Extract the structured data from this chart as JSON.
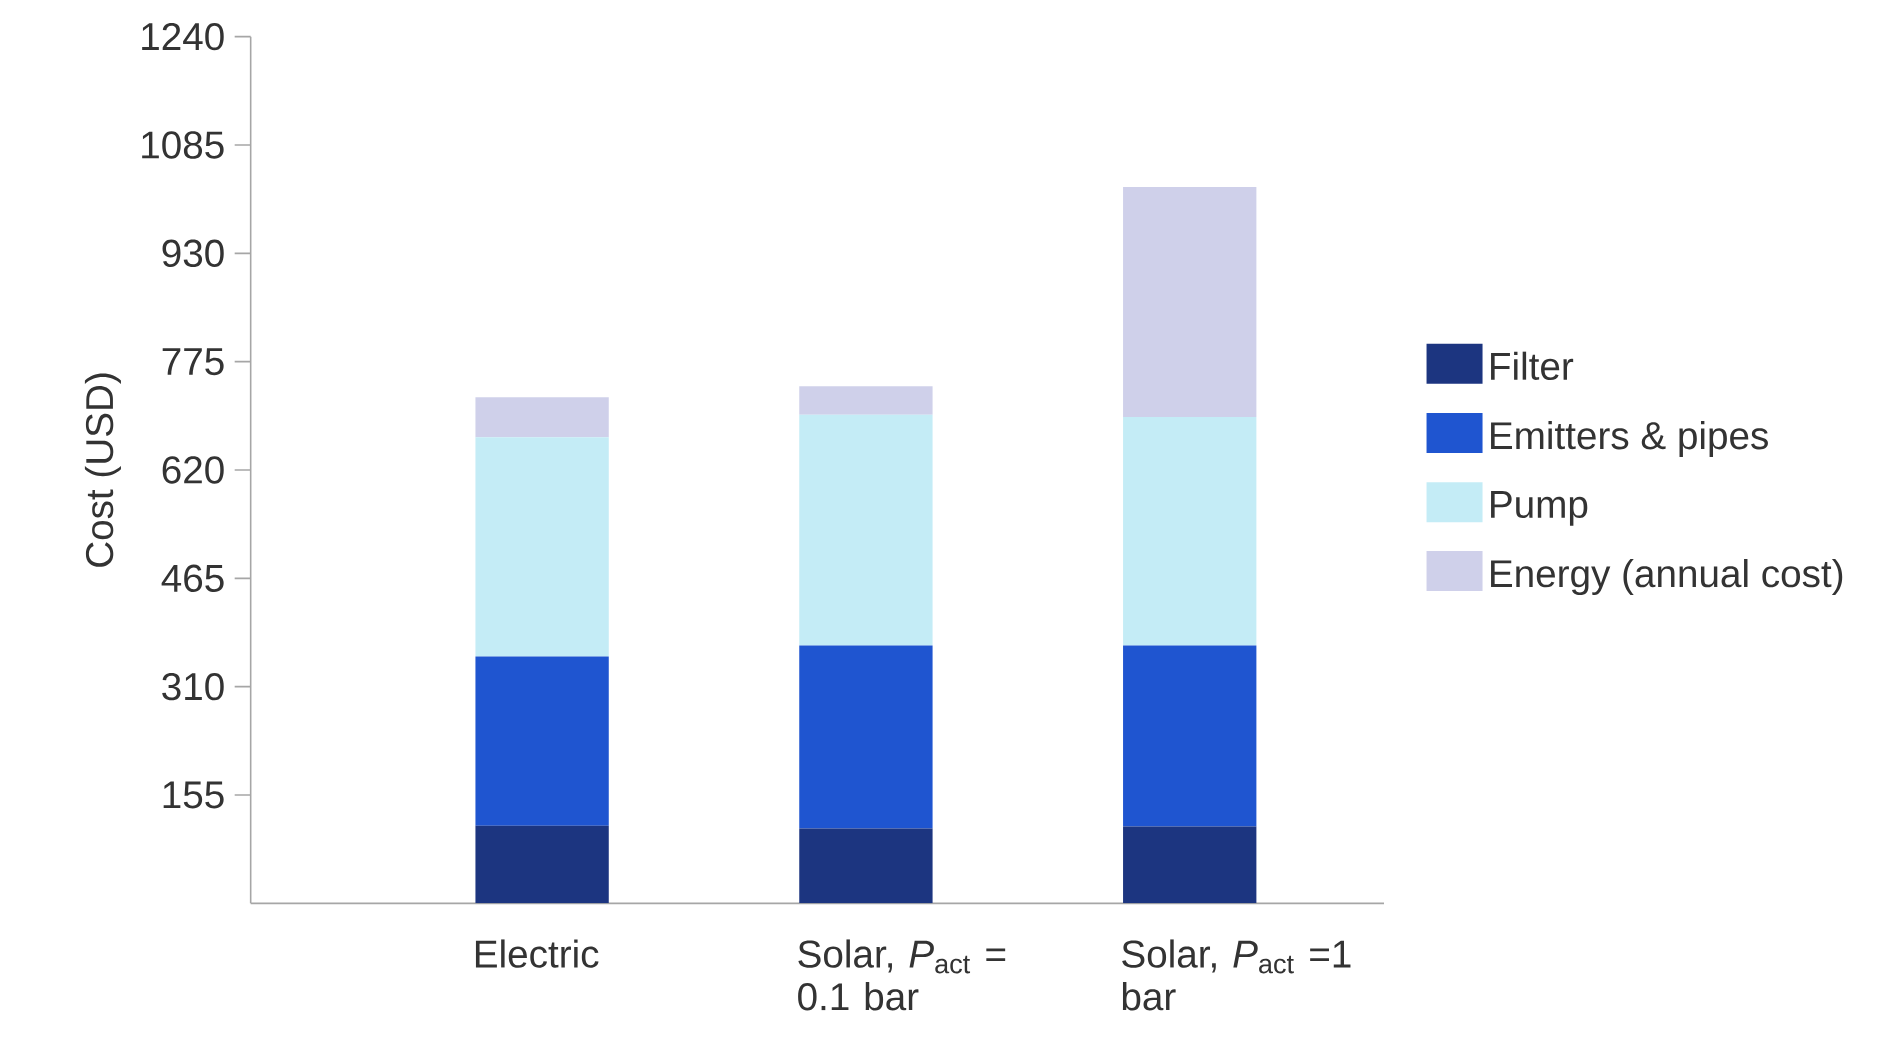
{
  "chart_data": {
    "type": "bar",
    "stacked": true,
    "ylabel": "Cost (USD)",
    "categories": [
      "Electric",
      "Solar, *P*$_{act}$ = 0.1 bar",
      "Solar, *P*$_{act}$ =1 bar"
    ],
    "series": [
      {
        "name": "Filter",
        "color": "#1c3580",
        "values": [
          111,
          107,
          110
        ]
      },
      {
        "name": "Emitters & pipes",
        "color": "#1f55d0",
        "values": [
          242,
          262,
          259
        ]
      },
      {
        "name": "Pump",
        "color": "#c4ecf6",
        "values": [
          314,
          330,
          327
        ]
      },
      {
        "name": "Energy (annual cost)",
        "color": "#cfd0ea",
        "values": [
          57,
          41,
          329
        ]
      }
    ],
    "ylim": [
      0,
      1240
    ],
    "yticks": [
      155,
      310,
      465,
      620,
      775,
      930,
      1085,
      1240
    ],
    "grid": false,
    "legend": "right"
  }
}
